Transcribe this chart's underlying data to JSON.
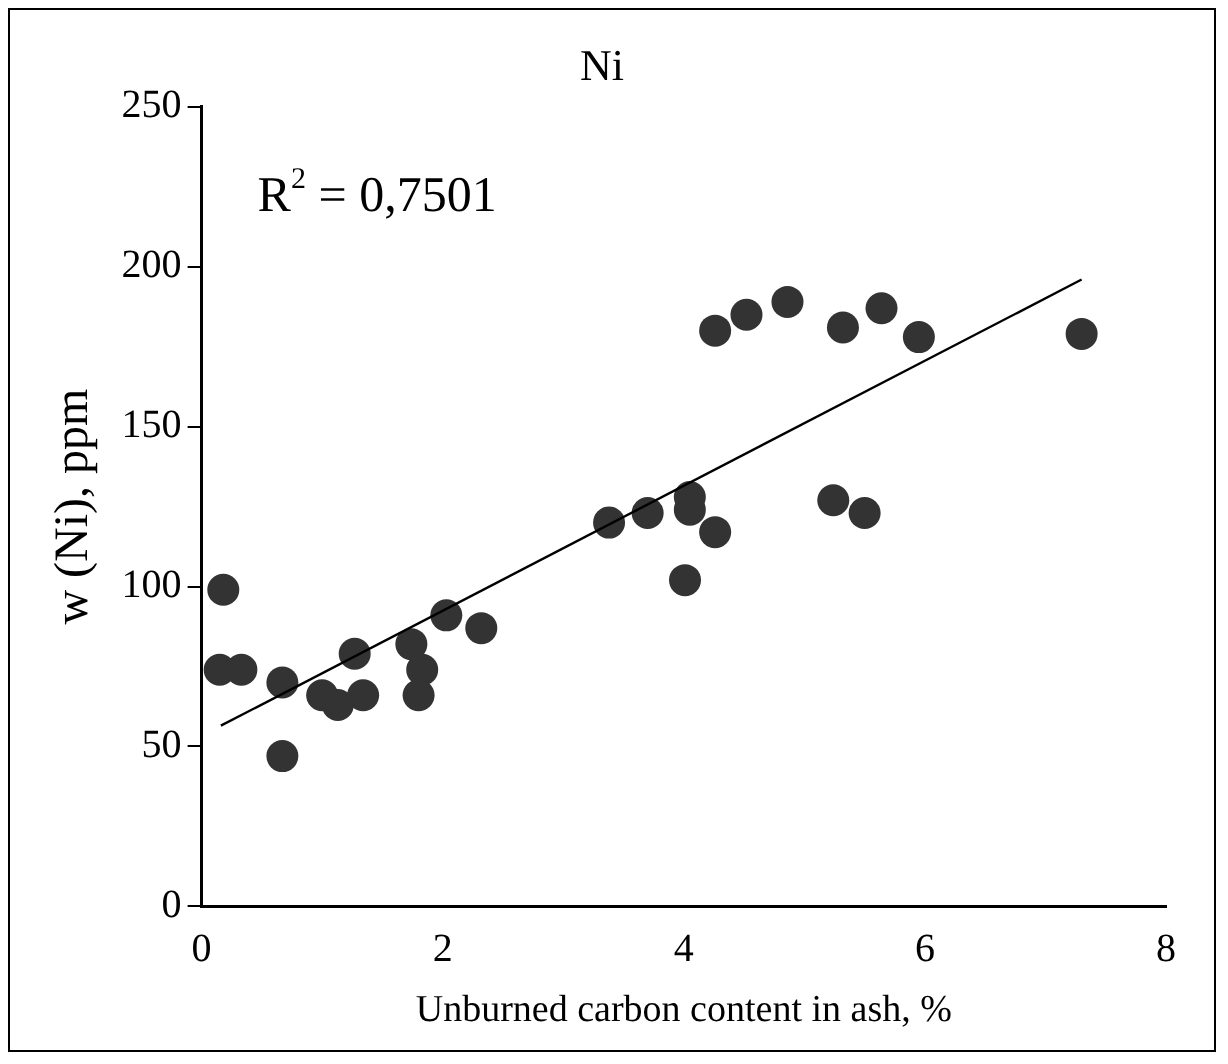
{
  "chart_data": {
    "type": "scatter",
    "title": "Ni",
    "xlabel": "Unburned carbon content in ash, %",
    "ylabel": "w (Ni), ppm",
    "annotations": [
      "R$^{2}$ = 0,7501"
    ],
    "xlim": [
      0,
      8
    ],
    "xticks": [
      0,
      2,
      4,
      6,
      8
    ],
    "ylim": [
      0,
      250
    ],
    "yticks": [
      0,
      50,
      100,
      150,
      200,
      250
    ],
    "grid": false,
    "legend": false,
    "marker": "circle",
    "series": [
      {
        "color": "#333333",
        "x": [
          0.18,
          0.15,
          0.33,
          0.67,
          0.67,
          1.0,
          1.13,
          1.34,
          1.27,
          1.74,
          1.83,
          1.8,
          2.03,
          2.32,
          3.38,
          3.7,
          4.05,
          4.05,
          4.01,
          4.26,
          4.26,
          4.52,
          4.86,
          5.32,
          5.64,
          5.95,
          5.24,
          5.5,
          7.3
        ],
        "values": [
          99,
          74,
          74,
          70,
          47,
          66,
          63,
          66,
          79,
          82,
          74,
          66,
          91,
          87,
          120,
          123,
          128,
          124,
          102,
          117,
          180,
          185,
          189,
          181,
          187,
          178,
          127,
          123,
          179
        ]
      },
      {
        "type": "line",
        "color": "#000000",
        "marker": "none",
        "x": [
          0.16,
          7.3
        ],
        "values": [
          56.5,
          196
        ]
      }
    ]
  }
}
